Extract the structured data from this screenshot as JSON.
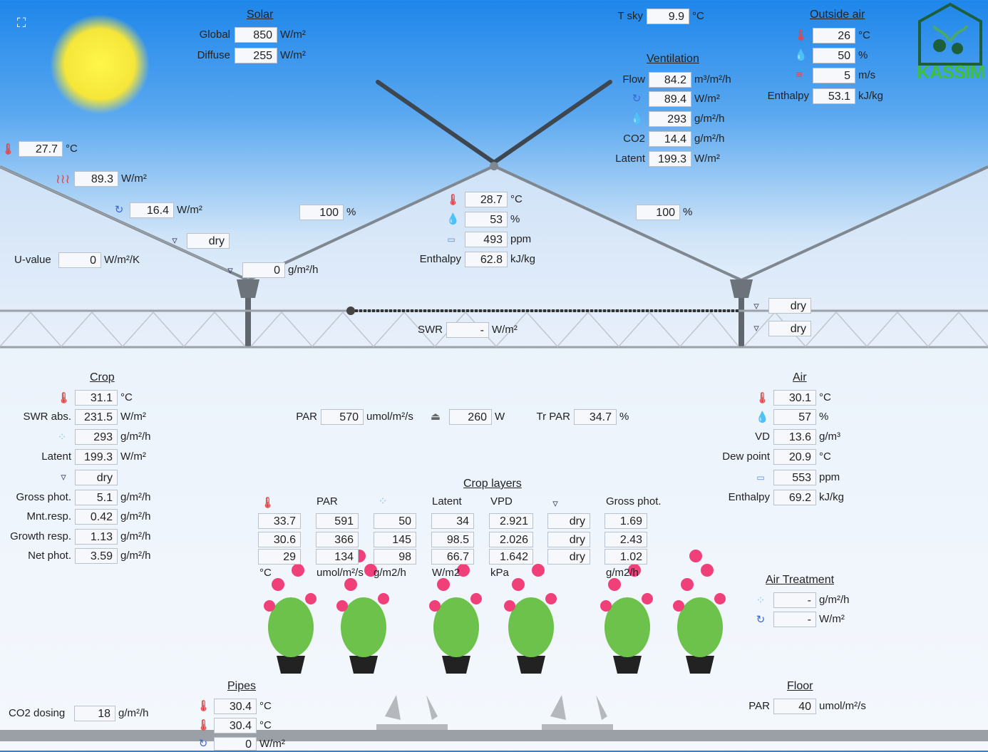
{
  "fullscreen_icon": "expand-icon",
  "solar": {
    "title": "Solar",
    "global_label": "Global",
    "global": "850",
    "global_unit": "W/m²",
    "diffuse_label": "Diffuse",
    "diffuse": "255",
    "diffuse_unit": "W/m²"
  },
  "tsky": {
    "label": "T sky",
    "value": "9.9",
    "unit": "°C"
  },
  "outside": {
    "title": "Outside air",
    "temp": "26",
    "temp_unit": "°C",
    "rh": "50",
    "rh_unit": "%",
    "wind": "5",
    "wind_unit": "m/s",
    "enthalpy_label": "Enthalpy",
    "enthalpy": "53.1",
    "enthalpy_unit": "kJ/kg"
  },
  "logo": "KASSIM",
  "ventilation": {
    "title": "Ventilation",
    "flow_label": "Flow",
    "flow": "84.2",
    "flow_unit": "m³/m²/h",
    "heat": "89.4",
    "heat_unit": "W/m²",
    "vapour": "293",
    "vapour_unit": "g/m²/h",
    "co2_label": "CO2",
    "co2": "14.4",
    "co2_unit": "g/m²/h",
    "latent_label": "Latent",
    "latent": "199.3",
    "latent_unit": "W/m²"
  },
  "roof": {
    "temp": "27.7",
    "temp_unit": "°C",
    "radiation": "89.3",
    "radiation_unit": "W/m²",
    "convection": "16.4",
    "convection_unit": "W/m²",
    "condensation": "dry",
    "uvalue_label": "U-value",
    "uvalue": "0",
    "uvalue_unit": "W/m²/K",
    "gutter_flow": "0",
    "gutter_flow_unit": "g/m²/h",
    "window_left": "100",
    "window_right": "100",
    "window_unit": "%"
  },
  "greenhouse": {
    "temp": "28.7",
    "temp_unit": "°C",
    "rh": "53",
    "rh_unit": "%",
    "co2": "493",
    "co2_unit": "ppm",
    "enthalpy_label": "Enthalpy",
    "enthalpy": "62.8",
    "enthalpy_unit": "kJ/kg"
  },
  "screen": {
    "swr_label": "SWR",
    "swr": "-",
    "swr_unit": "W/m²",
    "state1": "dry",
    "state2": "dry"
  },
  "crop": {
    "title": "Crop",
    "temp": "31.1",
    "temp_unit": "°C",
    "swr_label": "SWR abs.",
    "swr": "231.5",
    "swr_unit": "W/m²",
    "transp": "293",
    "transp_unit": "g/m²/h",
    "latent_label": "Latent",
    "latent": "199.3",
    "latent_unit": "W/m²",
    "condensation": "dry",
    "gross_label": "Gross phot.",
    "gross": "5.1",
    "gross_unit": "g/m²/h",
    "mnt_label": "Mnt.resp.",
    "mnt": "0.42",
    "mnt_unit": "g/m²/h",
    "growth_label": "Growth resp.",
    "growth": "1.13",
    "growth_unit": "g/m²/h",
    "net_label": "Net phot.",
    "net": "3.59",
    "net_unit": "g/m²/h"
  },
  "par": {
    "label": "PAR",
    "value": "570",
    "unit": "umol/m²/s",
    "lamp": "260",
    "lamp_unit": "W",
    "trpar_label": "Tr PAR",
    "trpar": "34.7",
    "trpar_unit": "%"
  },
  "air": {
    "title": "Air",
    "temp": "30.1",
    "temp_unit": "°C",
    "rh": "57",
    "rh_unit": "%",
    "vd_label": "VD",
    "vd": "13.6",
    "vd_unit": "g/m³",
    "dew_label": "Dew point",
    "dew": "20.9",
    "dew_unit": "°C",
    "co2": "553",
    "co2_unit": "ppm",
    "enthalpy_label": "Enthalpy",
    "enthalpy": "69.2",
    "enthalpy_unit": "kJ/kg"
  },
  "layers": {
    "title": "Crop layers",
    "headers": {
      "par": "PAR",
      "latent": "Latent",
      "vpd": "VPD",
      "gross": "Gross phot."
    },
    "rows": [
      {
        "temp": "33.7",
        "par": "591",
        "transp": "50",
        "latent": "34",
        "vpd": "2.921",
        "cond": "dry",
        "gross": "1.69"
      },
      {
        "temp": "30.6",
        "par": "366",
        "transp": "145",
        "latent": "98.5",
        "vpd": "2.026",
        "cond": "dry",
        "gross": "2.43"
      },
      {
        "temp": "29",
        "par": "134",
        "transp": "98",
        "latent": "66.7",
        "vpd": "1.642",
        "cond": "dry",
        "gross": "1.02"
      }
    ],
    "units": {
      "temp": "°C",
      "par": "umol/m²/s",
      "transp": "g/m2/h",
      "latent": "W/m2",
      "vpd": "kPa",
      "gross": "g/m2/h"
    }
  },
  "air_treatment": {
    "title": "Air Treatment",
    "vapour": "-",
    "vapour_unit": "g/m²/h",
    "heat": "-",
    "heat_unit": "W/m²"
  },
  "pipes": {
    "title": "Pipes",
    "temp1": "30.4",
    "temp2": "30.4",
    "temp_unit": "°C",
    "heat": "0",
    "heat_unit": "W/m²"
  },
  "co2dosing": {
    "label": "CO2 dosing",
    "value": "18",
    "unit": "g/m²/h"
  },
  "floor": {
    "title": "Floor",
    "par_label": "PAR",
    "par": "40",
    "par_unit": "umol/m²/s"
  }
}
